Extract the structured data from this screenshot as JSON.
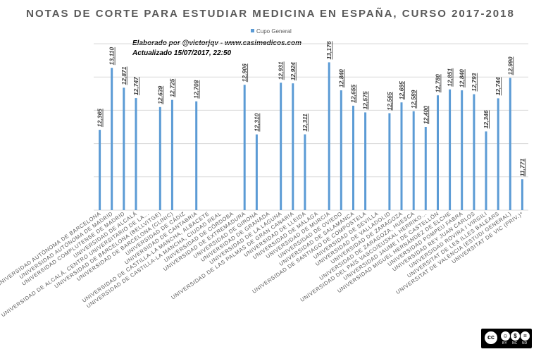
{
  "chart_data": {
    "type": "bar",
    "title": "NOTAS DE CORTE PARA ESTUDIAR MEDICINA EN ESPAÑA, CURSO 2017-2018",
    "xlabel": "",
    "ylabel": "",
    "ylim": [
      11.4,
      13.4
    ],
    "grid": true,
    "legend_position": "top-center",
    "series": [
      {
        "name": "Cupo General",
        "color": "#5b9bd5",
        "labels": [
          "12,365",
          "13,110",
          "12,871",
          "12,747",
          "",
          "12,639",
          "12,725",
          "",
          "12,708",
          "",
          "",
          "",
          "12,906",
          "12,310",
          "",
          "12,931",
          "12,924",
          "12,311",
          "",
          "13,176",
          "12,840",
          "12,655",
          "12,575",
          "",
          "12,565",
          "12,695",
          "12,589",
          "12,400",
          "12,780",
          "12,851",
          "12,840",
          "12,793",
          "12,346",
          "12,744",
          "12,990",
          "11,771"
        ],
        "values": [
          12.365,
          13.11,
          12.871,
          12.747,
          null,
          12.639,
          12.725,
          null,
          12.708,
          null,
          null,
          null,
          12.906,
          12.31,
          null,
          12.931,
          12.924,
          12.311,
          null,
          13.176,
          12.84,
          12.655,
          12.575,
          null,
          12.565,
          12.695,
          12.589,
          12.4,
          12.78,
          12.851,
          12.84,
          12.793,
          12.346,
          12.744,
          12.99,
          11.771
        ]
      }
    ],
    "categories": [
      "UNIVERSIDAD AUTÓNOMA DE BARCELONA",
      "UNIVERSIDAD AUTÓNOMA DE MADRID",
      "UNIVERSIDAD COMPLUTENSE DE MADRID",
      "UNIVERSIDAD DE ALCALÁ",
      "UNIVERSIDAD DE ALCALÁ, CENTRO UNIVERSITARIO DE LA...",
      "UNIVERSIDAD DE BARCELONA (BELLVITGE)",
      "UNIVERSIDAD DE BARCELONA (CLINIC)",
      "UNIVERSIDAD DE CÁDIZ",
      "UNIVERSIDAD DE CANTABRIA",
      "UNIVERSIDAD DE CASTILLA-LA MANCHA, ALBACETE",
      "UNIVERSIDAD DE CASTILLA-LA MANCHA, CIUDAD REAL",
      "UNIVERSIDAD DE CÓRDOBA",
      "UNIVERSIDAD DE EXTREMADURA",
      "UNIVERSIDAD DE GIRONA",
      "UNIVERSIDAD DE GRANADA",
      "UNIVERSIDAD DE LA LAGUNA",
      "UNIVERSIDAD DE LAS PALMAS DE GRAN CANARIA",
      "UNIVERSIDAD DE LLEIDA",
      "UNIVERSIDAD DE MÁLAGA",
      "UNIVERSIDAD DE MURCIA",
      "UNIVERSIDAD DE OVIEDO",
      "UNIVERSIDAD DE SALAMANCA",
      "UNIVERSIDAD DE SANTIAGO DE COMPOSTELA",
      "UNIVERSIDAD DE SEVILLA",
      "UNIVERSIDAD DE VALLADOLID",
      "UNIVERSIDAD DE ZARAGOZA",
      "UNIVERSIDAD DE ZARAGOZA, HUESCA",
      "UNIVERSIDAD DEL PAÍS VASCO/EUSKAL HERRIKO...",
      "UNIVERSIDAD JAUME I DE CASTELLÓN",
      "UNIVERSIDAD MIGUEL HERNÁNDEZ DE ELCHE",
      "UNIVERSIDAD POMPEU FABRA",
      "UNIVERSIDAD REY JUAN CARLOS",
      "UNIVERSIDAD ROVIRA I VIRGILI",
      "UNIVERSITAT DE LES ILLES BALEARS",
      "UNIVERSITAT DE VALÈNCIA (ESTUDI GENERAL)",
      "UNIVERSITAT DE VIC (PRIV.)*"
    ]
  },
  "annotations": {
    "author": "Elaborado por @victorjqv - www.casimedicos.com",
    "updated": "Actualizado 15/07/2017, 22:50"
  },
  "license": {
    "badge": "cc",
    "icons": [
      "by-icon",
      "nc-icon",
      "nd-icon"
    ],
    "labels": [
      "BY",
      "NC",
      "ND"
    ]
  }
}
